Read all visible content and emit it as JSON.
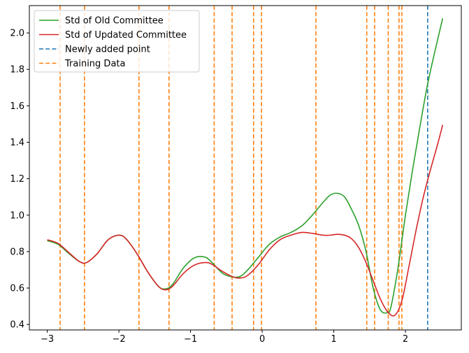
{
  "chart_data": {
    "type": "line",
    "title": "",
    "xlabel": "",
    "ylabel": "",
    "xlim": [
      -3.25,
      2.78
    ],
    "ylim": [
      0.37,
      2.15
    ],
    "xticks": [
      -3,
      -2,
      -1,
      0,
      1,
      2
    ],
    "xtick_labels": [
      "−3",
      "−2",
      "−1",
      "0",
      "1",
      "2"
    ],
    "yticks": [
      0.4,
      0.6,
      0.8,
      1.0,
      1.2,
      1.4,
      1.6,
      1.8,
      2.0
    ],
    "ytick_labels": [
      "0.4",
      "0.6",
      "0.8",
      "1.0",
      "1.2",
      "1.4",
      "1.6",
      "1.8",
      "2.0"
    ],
    "grid": false,
    "legend_position": "upper-left",
    "series": [
      {
        "name": "Std of Old Committee",
        "color": "#2ca02c",
        "style": "solid",
        "x": [
          -3.0,
          -2.85,
          -2.7,
          -2.55,
          -2.45,
          -2.3,
          -2.15,
          -2.0,
          -1.9,
          -1.75,
          -1.6,
          -1.45,
          -1.35,
          -1.25,
          -1.1,
          -0.95,
          -0.8,
          -0.7,
          -0.55,
          -0.4,
          -0.3,
          -0.2,
          -0.05,
          0.1,
          0.25,
          0.4,
          0.55,
          0.7,
          0.85,
          0.95,
          1.05,
          1.15,
          1.25,
          1.35,
          1.45,
          1.55,
          1.65,
          1.75,
          1.8,
          1.9,
          2.0,
          2.1,
          2.2,
          2.3,
          2.4,
          2.52
        ],
        "y": [
          0.86,
          0.84,
          0.79,
          0.745,
          0.74,
          0.79,
          0.865,
          0.89,
          0.87,
          0.79,
          0.69,
          0.61,
          0.595,
          0.62,
          0.71,
          0.765,
          0.77,
          0.74,
          0.68,
          0.66,
          0.665,
          0.7,
          0.77,
          0.84,
          0.88,
          0.905,
          0.94,
          1.0,
          1.07,
          1.11,
          1.12,
          1.1,
          1.03,
          0.94,
          0.8,
          0.6,
          0.48,
          0.465,
          0.5,
          0.72,
          1.0,
          1.25,
          1.48,
          1.7,
          1.88,
          2.08
        ]
      },
      {
        "name": "Std of Updated Committee",
        "color": "#d62728",
        "style": "solid",
        "x": [
          -3.0,
          -2.85,
          -2.7,
          -2.55,
          -2.45,
          -2.3,
          -2.15,
          -2.0,
          -1.9,
          -1.75,
          -1.6,
          -1.45,
          -1.35,
          -1.25,
          -1.1,
          -0.95,
          -0.8,
          -0.7,
          -0.55,
          -0.4,
          -0.3,
          -0.2,
          -0.05,
          0.1,
          0.25,
          0.4,
          0.55,
          0.7,
          0.85,
          0.95,
          1.05,
          1.15,
          1.25,
          1.35,
          1.45,
          1.55,
          1.65,
          1.75,
          1.85,
          1.95,
          2.05,
          2.15,
          2.25,
          2.35,
          2.45,
          2.52
        ],
        "y": [
          0.865,
          0.845,
          0.795,
          0.745,
          0.74,
          0.79,
          0.865,
          0.89,
          0.87,
          0.79,
          0.69,
          0.61,
          0.59,
          0.61,
          0.68,
          0.725,
          0.74,
          0.73,
          0.69,
          0.66,
          0.655,
          0.67,
          0.73,
          0.81,
          0.865,
          0.89,
          0.905,
          0.9,
          0.89,
          0.89,
          0.895,
          0.89,
          0.87,
          0.82,
          0.74,
          0.64,
          0.54,
          0.47,
          0.45,
          0.53,
          0.72,
          0.92,
          1.1,
          1.25,
          1.39,
          1.495
        ]
      }
    ],
    "vlines": [
      {
        "name": "Newly added point",
        "color": "#1f77b4",
        "style": "dashed",
        "x": [
          2.31
        ]
      },
      {
        "name": "Training Data",
        "color": "#ff7f0e",
        "style": "dashed",
        "x": [
          -2.82,
          -2.48,
          -1.72,
          -1.3,
          -0.67,
          -0.42,
          -0.12,
          -0.01,
          0.75,
          1.46,
          1.57,
          1.76,
          1.91,
          1.95
        ]
      }
    ]
  }
}
